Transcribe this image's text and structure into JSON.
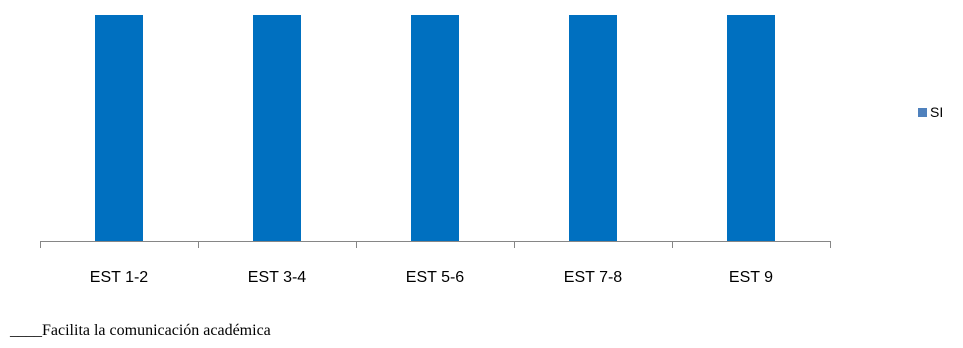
{
  "chart_data": {
    "type": "bar",
    "categories": [
      "EST 1-2",
      "EST 3-4",
      "EST 5-6",
      "EST 7-8",
      "EST 9"
    ],
    "series": [
      {
        "name": "SI",
        "values": [
          100,
          100,
          100,
          100,
          100
        ]
      }
    ],
    "title": "",
    "xlabel": "",
    "ylabel": "",
    "ylim": [
      0,
      100
    ],
    "grid": false,
    "legend": "right",
    "colors": {
      "bar": "#0070c0",
      "legend_swatch": "#4f81bd",
      "axis": "#868686"
    }
  },
  "caption": "____Facilita la comunicación académica"
}
